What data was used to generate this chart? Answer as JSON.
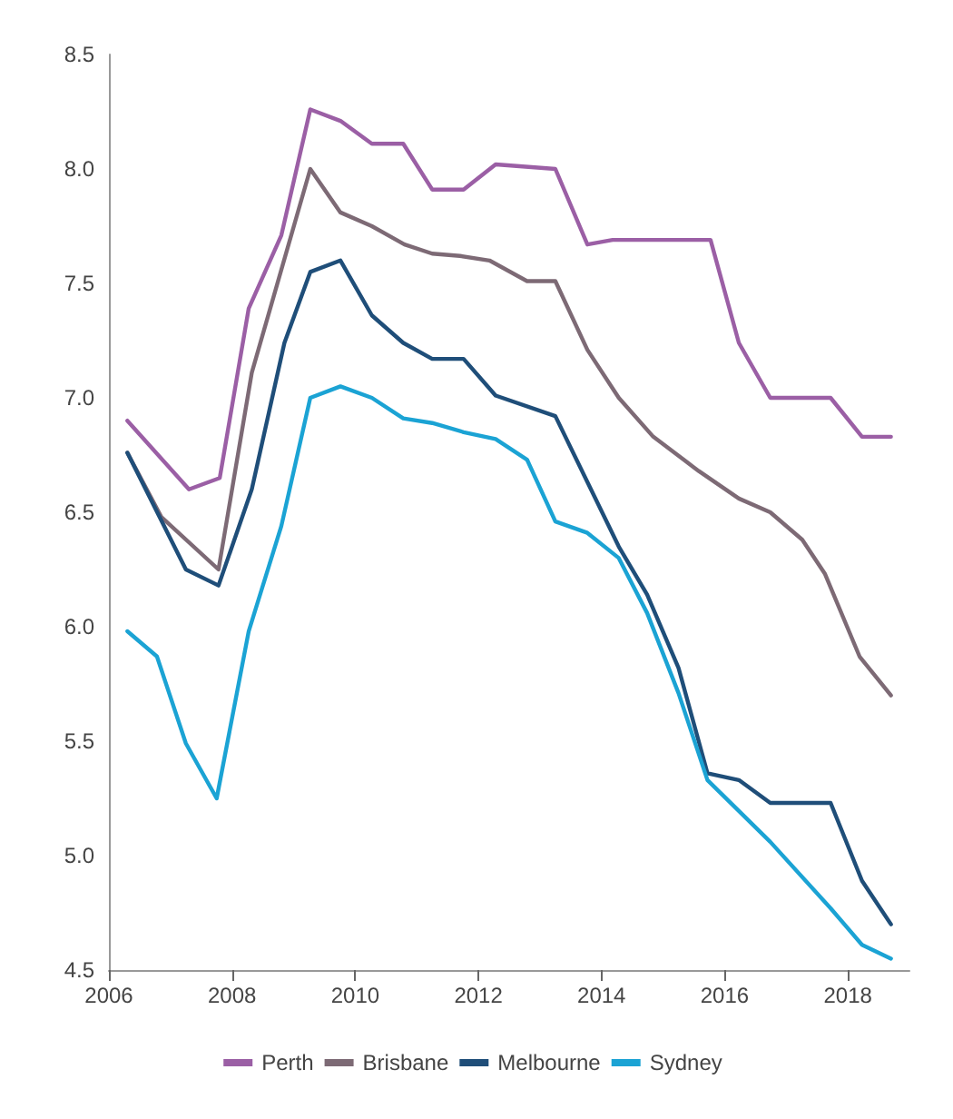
{
  "chart_data": {
    "type": "line",
    "xlim": [
      2006,
      2019
    ],
    "xticks": [
      2006,
      2008,
      2010,
      2012,
      2014,
      2016,
      2018
    ],
    "ylim": [
      4.5,
      8.5
    ],
    "yticks": [
      4.5,
      {
        "value": 5,
        "label": "5.0"
      },
      5.5,
      {
        "value": 6,
        "label": "6.0"
      },
      6.5,
      {
        "value": 7,
        "label": "7.0"
      },
      7.5,
      {
        "value": 8,
        "label": "8.0"
      },
      8.5
    ],
    "grid": false,
    "legend": "bottom",
    "marker": "none",
    "line_style": "solid",
    "series": [
      {
        "name": "Perth",
        "color": "#9b5fa5",
        "x": [
          2006.3,
          2007.3,
          2007.8,
          2008.27,
          2008.8,
          2009.27,
          2009.76,
          2010.27,
          2010.78,
          2011.25,
          2011.76,
          2012.28,
          2013.25,
          2013.77,
          2014.18,
          2015.77,
          2016.23,
          2016.74,
          2017.72,
          2018.23,
          2018.7
        ],
        "values": [
          6.9,
          6.6,
          6.65,
          7.39,
          7.71,
          8.26,
          8.21,
          8.11,
          8.11,
          7.91,
          7.91,
          8.02,
          8.0,
          7.67,
          7.69,
          7.69,
          7.24,
          7.0,
          7.0,
          6.83,
          6.83
        ]
      },
      {
        "name": "Brisbane",
        "color": "#7d6a75",
        "x": [
          2006.3,
          2006.85,
          2007.78,
          2008.32,
          2009.27,
          2009.76,
          2010.27,
          2010.8,
          2011.25,
          2011.7,
          2012.18,
          2012.79,
          2013.25,
          2013.77,
          2014.28,
          2014.84,
          2015.58,
          2016.23,
          2016.74,
          2017.26,
          2017.63,
          2018.19,
          2018.7
        ],
        "values": [
          6.76,
          6.48,
          6.25,
          7.11,
          8.0,
          7.81,
          7.75,
          7.67,
          7.63,
          7.62,
          7.6,
          7.51,
          7.51,
          7.21,
          7.0,
          6.83,
          6.68,
          6.56,
          6.5,
          6.38,
          6.23,
          5.87,
          5.7
        ]
      },
      {
        "name": "Melbourne",
        "color": "#1f4e79",
        "x": [
          2006.3,
          2007.25,
          2007.78,
          2008.32,
          2008.85,
          2009.27,
          2009.76,
          2010.27,
          2010.78,
          2011.25,
          2011.76,
          2012.28,
          2013.25,
          2014.28,
          2014.74,
          2015.25,
          2015.72,
          2016.23,
          2016.74,
          2017.72,
          2018.23,
          2018.7
        ],
        "values": [
          6.76,
          6.25,
          6.18,
          6.6,
          7.24,
          7.55,
          7.6,
          7.36,
          7.24,
          7.17,
          7.17,
          7.01,
          6.92,
          6.35,
          6.14,
          5.82,
          5.36,
          5.33,
          5.23,
          5.23,
          4.89,
          4.7
        ]
      },
      {
        "name": "Sydney",
        "color": "#1ba3d4",
        "x": [
          2006.3,
          2006.78,
          2007.25,
          2007.75,
          2008.27,
          2008.8,
          2009.27,
          2009.76,
          2010.27,
          2010.78,
          2011.25,
          2011.76,
          2012.28,
          2012.79,
          2013.25,
          2013.77,
          2014.28,
          2014.74,
          2015.25,
          2015.72,
          2016.74,
          2017.72,
          2018.23,
          2018.7
        ],
        "values": [
          5.98,
          5.87,
          5.49,
          5.25,
          5.98,
          6.44,
          7.0,
          7.05,
          7.0,
          6.91,
          6.89,
          6.85,
          6.82,
          6.73,
          6.46,
          6.41,
          6.3,
          6.06,
          5.71,
          5.33,
          5.06,
          4.77,
          4.61,
          4.55
        ]
      }
    ]
  }
}
